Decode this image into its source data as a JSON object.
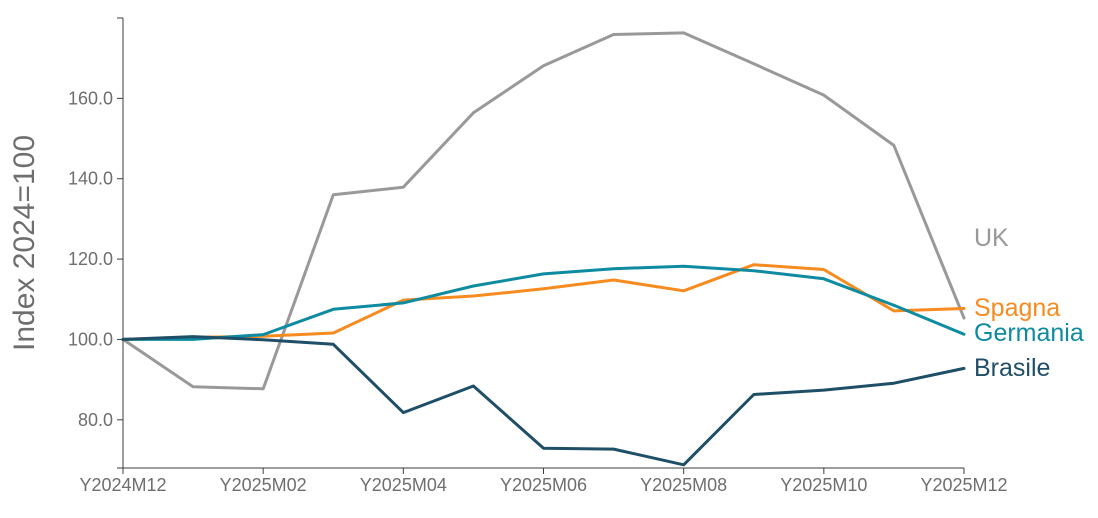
{
  "chart_data": {
    "type": "line",
    "title": "",
    "xlabel": "",
    "ylabel": "Index 2024=100",
    "ylim": [
      68,
      180
    ],
    "grid": false,
    "legend": "inline labels at line ends",
    "x": [
      "Y2024M12",
      "Y2025M01",
      "Y2025M02",
      "Y2025M03",
      "Y2025M04",
      "Y2025M05",
      "Y2025M06",
      "Y2025M07",
      "Y2025M08",
      "Y2025M09",
      "Y2025M10",
      "Y2025M11",
      "Y2025M12"
    ],
    "x_tick_labels": [
      "Y2024M12",
      "Y2025M02",
      "Y2025M04",
      "Y2025M06",
      "Y2025M08",
      "Y2025M10",
      "Y2025M12"
    ],
    "y_ticks": [
      80,
      100,
      120,
      140,
      160
    ],
    "y_tick_labels": [
      "80.0",
      "100.0",
      "120.0",
      "140.0",
      "160.0"
    ],
    "series": [
      {
        "name": "UK",
        "color": "#999999",
        "values": [
          100.0,
          88.2,
          87.7,
          136.0,
          137.9,
          156.4,
          168.1,
          175.9,
          176.3,
          168.6,
          160.8,
          148.3,
          105.3
        ]
      },
      {
        "name": "Spagna",
        "color": "#f68b1f",
        "values": [
          100.0,
          100.5,
          100.8,
          101.6,
          109.8,
          110.8,
          112.6,
          114.8,
          112.1,
          118.6,
          117.4,
          107.1,
          107.7
        ]
      },
      {
        "name": "Germania",
        "color": "#0e8ba0",
        "values": [
          100.0,
          100.0,
          101.2,
          107.5,
          109.1,
          113.3,
          116.3,
          117.6,
          118.2,
          117.1,
          115.1,
          108.5,
          101.3
        ]
      },
      {
        "name": "Brasile",
        "color": "#1f4e67",
        "values": [
          100.0,
          100.7,
          99.9,
          98.8,
          81.8,
          88.4,
          72.9,
          72.7,
          68.8,
          86.3,
          87.4,
          89.1,
          92.8
        ]
      }
    ]
  }
}
